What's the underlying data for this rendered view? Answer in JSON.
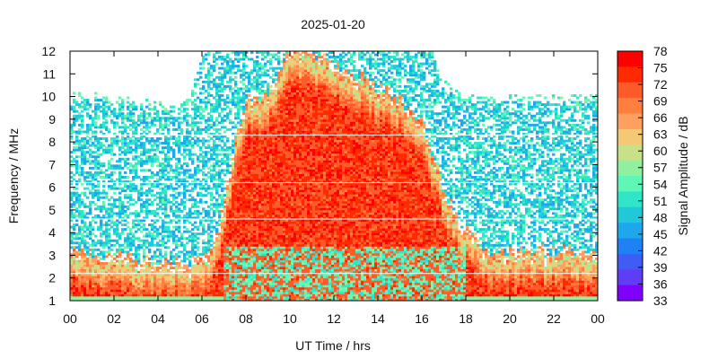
{
  "chart_data": {
    "type": "heatmap",
    "title": "2025-01-20",
    "xlabel": "UT Time / hrs",
    "ylabel": "Frequency / MHz",
    "colorbar_label": "Signal Amplitude / dB",
    "xlim": [
      0,
      24
    ],
    "ylim": [
      1,
      12
    ],
    "x_ticks": [
      "00",
      "02",
      "04",
      "06",
      "08",
      "10",
      "12",
      "14",
      "16",
      "18",
      "20",
      "22",
      "00"
    ],
    "y_ticks": [
      "1",
      "2",
      "3",
      "4",
      "5",
      "6",
      "7",
      "8",
      "9",
      "10",
      "11",
      "12"
    ],
    "colorbar": {
      "range": [
        33,
        78
      ],
      "ticks": [
        "78",
        "75",
        "72",
        "69",
        "66",
        "63",
        "60",
        "57",
        "54",
        "51",
        "48",
        "45",
        "42",
        "39",
        "36",
        "33"
      ],
      "colors": [
        "#ff0000",
        "#ff2a00",
        "#ff5a2a",
        "#ff7f3f",
        "#ffa060",
        "#f5c873",
        "#c8e088",
        "#90f0a0",
        "#5ff7b8",
        "#30e6c8",
        "#20c8d8",
        "#1ea8ec",
        "#1e82f5",
        "#3f5cf5",
        "#5f3cf5",
        "#8000ff"
      ]
    },
    "profile_hours": [
      0,
      1,
      2,
      3,
      4,
      5,
      5.5,
      6,
      6.5,
      7,
      7.5,
      8,
      9,
      10,
      11,
      12,
      13,
      14,
      15,
      15.5,
      16,
      16.5,
      17,
      17.5,
      18,
      18.5,
      19,
      20,
      21,
      22,
      23,
      24
    ],
    "strong_echo_top_mhz": [
      2.8,
      2.7,
      2.6,
      2.5,
      2.4,
      2.3,
      2.3,
      2.4,
      3,
      5,
      7.5,
      9.5,
      9.8,
      11.8,
      11.5,
      11,
      10.5,
      10,
      9.5,
      9,
      8.5,
      7,
      5.5,
      4.5,
      3.8,
      3.3,
      2.8,
      2.8,
      2.8,
      2.8,
      2.8,
      2.8
    ],
    "weak_echo_top_mhz": [
      9.9,
      9.9,
      9.8,
      9.6,
      9.5,
      9.3,
      9.8,
      11.8,
      12,
      12,
      12,
      12,
      12,
      12,
      12,
      12,
      12,
      12,
      12,
      12,
      12,
      11.8,
      10.5,
      10,
      9.8,
      9.8,
      9.8,
      9.8,
      9.8,
      9.8,
      9.8,
      9.8
    ],
    "peak_amplitude_db": 78,
    "background_amplitude_db": 50
  }
}
